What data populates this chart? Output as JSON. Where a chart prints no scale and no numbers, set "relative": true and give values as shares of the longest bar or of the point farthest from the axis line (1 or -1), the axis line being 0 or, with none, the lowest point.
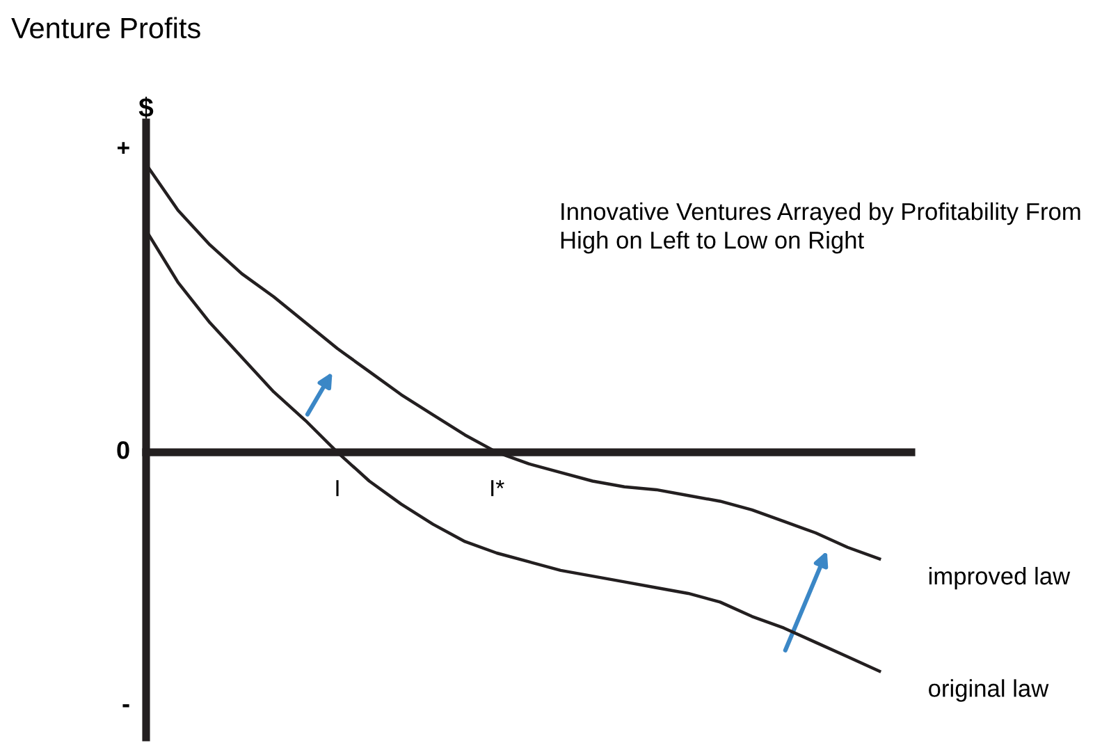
{
  "chart_data": {
    "type": "line",
    "title": "Venture Profits",
    "ylabel": "$",
    "relative": true,
    "categories": [
      null,
      null,
      null,
      null,
      null,
      null,
      "I",
      null,
      null,
      null,
      null,
      "I*",
      null,
      null,
      null,
      null,
      null,
      null,
      null,
      null,
      null,
      null,
      null,
      null,
      null
    ],
    "series": [
      {
        "name": "improved law",
        "color": "#231f20",
        "values": [
          1,
          0.84,
          0.72,
          0.62,
          0.54,
          0.45,
          0.36,
          0.28,
          0.2,
          0.13,
          0.06,
          0,
          -0.04,
          -0.07,
          -0.1,
          -0.12,
          -0.13,
          -0.15,
          -0.17,
          -0.2,
          -0.24,
          -0.28,
          -0.33,
          -0.37,
          null
        ]
      },
      {
        "name": "original law",
        "color": "#231f20",
        "values": [
          0.77,
          0.59,
          0.45,
          0.33,
          0.21,
          0.11,
          0,
          -0.1,
          -0.18,
          -0.25,
          -0.31,
          -0.35,
          -0.38,
          -0.41,
          -0.43,
          -0.45,
          -0.47,
          -0.49,
          -0.52,
          -0.57,
          -0.61,
          -0.66,
          -0.71,
          -0.76,
          null
        ]
      }
    ],
    "annotations": [
      "+",
      "0",
      "-",
      "Innovative Ventures Arrayed by Profitability From High on Left to Low on Right"
    ],
    "grid": false,
    "legend": false,
    "marker": "none",
    "line_style": "solid"
  }
}
